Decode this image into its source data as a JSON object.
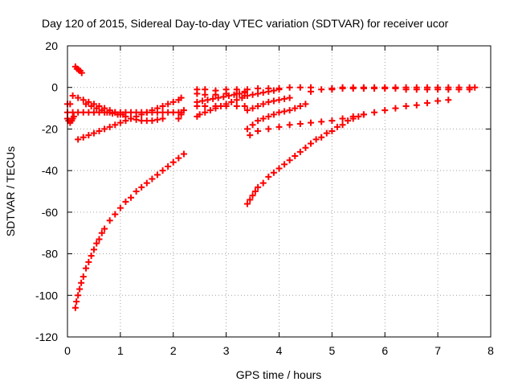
{
  "chart_data": {
    "type": "scatter",
    "title": "Day 120 of 2015, Sidereal Day-to-day VTEC variation (SDTVAR) for receiver ucor",
    "xlabel": "GPS time / hours",
    "ylabel": "SDTVAR / TECUs",
    "xlim": [
      0,
      8
    ],
    "ylim": [
      -120,
      20
    ],
    "xticks": [
      0,
      1,
      2,
      3,
      4,
      5,
      6,
      7,
      8
    ],
    "yticks": [
      -120,
      -100,
      -80,
      -60,
      -40,
      -20,
      0,
      20
    ],
    "grid": true,
    "marker": "plus",
    "color": "#ff0000",
    "series": [
      {
        "name": "arc-low-1",
        "x": [
          0.15,
          0.17,
          0.2,
          0.23,
          0.26,
          0.3,
          0.35,
          0.4,
          0.45,
          0.5,
          0.55,
          0.6,
          0.65,
          0.7,
          0.8,
          0.9,
          1.0,
          1.1,
          1.2,
          1.3,
          1.4,
          1.5,
          1.6,
          1.7,
          1.8,
          1.9,
          2.0,
          2.1,
          2.2
        ],
        "y": [
          -106,
          -103,
          -100,
          -97,
          -94,
          -91,
          -87,
          -84,
          -81,
          -78,
          -75,
          -73,
          -70,
          -68,
          -64,
          -61,
          -58,
          -55,
          -53,
          -50,
          -48,
          -46,
          -44,
          -42,
          -40,
          -38,
          -36,
          -34,
          -32
        ]
      },
      {
        "name": "arc-low-2",
        "x": [
          3.4,
          3.45,
          3.5,
          3.55,
          3.6,
          3.7,
          3.8,
          3.9,
          4.0,
          4.1,
          4.2,
          4.3,
          4.4,
          4.5,
          4.6,
          4.7,
          4.8,
          4.9,
          5.0,
          5.1,
          5.2,
          5.3,
          5.4,
          5.5,
          5.6
        ],
        "y": [
          -56,
          -54,
          -52,
          -50,
          -48,
          -46,
          -43,
          -41,
          -39,
          -37,
          -35,
          -33,
          -31,
          -29,
          -27,
          -25,
          -24,
          -22,
          -21,
          -19,
          -18,
          -16,
          -15,
          -14,
          -13
        ]
      },
      {
        "name": "rise-long",
        "x": [
          3.45,
          3.6,
          3.8,
          4.0,
          4.2,
          4.4,
          4.6,
          4.8,
          5.0,
          5.2,
          5.4,
          5.6,
          5.8,
          6.0,
          6.2,
          6.4,
          6.6,
          6.8,
          7.0,
          7.2
        ],
        "y": [
          -23,
          -21,
          -20,
          -19,
          -18,
          -17.5,
          -17,
          -16.5,
          -16,
          -15,
          -14,
          -13,
          -12,
          -11,
          -10,
          -9,
          -8.5,
          -7.5,
          -6.5,
          -6
        ]
      },
      {
        "name": "rise-early",
        "x": [
          0.2,
          0.3,
          0.4,
          0.5,
          0.6,
          0.7,
          0.8,
          0.9,
          1.0,
          1.1,
          1.2,
          1.3,
          1.4,
          1.5,
          1.6,
          1.7,
          1.8,
          1.9,
          2.0,
          2.1,
          2.15
        ],
        "y": [
          -25,
          -24,
          -23,
          -22,
          -21,
          -20,
          -19,
          -18,
          -17,
          -16,
          -15,
          -14,
          -13,
          -12,
          -11,
          -10,
          -9,
          -8,
          -7,
          -6,
          -5
        ]
      },
      {
        "name": "flat-early",
        "x": [
          0.0,
          0.1,
          0.2,
          0.3,
          0.4,
          0.5,
          0.6,
          0.7,
          0.8,
          0.9,
          1.0,
          1.1,
          1.2,
          1.3,
          1.4,
          1.5,
          1.6,
          1.7,
          1.8,
          1.9,
          2.0,
          2.1,
          2.15
        ],
        "y": [
          -12,
          -12,
          -12,
          -12,
          -12,
          -12,
          -12,
          -12,
          -12,
          -12,
          -12,
          -12,
          -12,
          -12,
          -12,
          -12,
          -12,
          -12,
          -12,
          -12,
          -12,
          -12,
          -12
        ]
      },
      {
        "name": "cross-early",
        "x": [
          0.1,
          0.2,
          0.3,
          0.4,
          0.5,
          0.6,
          0.7,
          0.8,
          0.9,
          1.0,
          1.1,
          1.2,
          1.3,
          1.4,
          1.5,
          1.6,
          1.7,
          1.8
        ],
        "y": [
          -4,
          -5,
          -6,
          -7,
          -8,
          -9,
          -10,
          -11,
          -12,
          -13,
          -14,
          -15,
          -15.5,
          -16,
          -16,
          -16,
          -15.5,
          -15
        ]
      },
      {
        "name": "desc-mid",
        "x": [
          0.35,
          0.45,
          0.55,
          0.65,
          0.75,
          0.85,
          0.95,
          1.05
        ],
        "y": [
          -8,
          -9,
          -10,
          -11,
          -12,
          -12.5,
          -13,
          -13
        ]
      },
      {
        "name": "spike-top",
        "x": [
          0.15,
          0.18,
          0.21,
          0.24,
          0.27
        ],
        "y": [
          10,
          9,
          8.5,
          8,
          7
        ]
      },
      {
        "name": "left-edge",
        "x": [
          0.0,
          0.02,
          0.05,
          0.08,
          0.1,
          0.12
        ],
        "y": [
          -15,
          -16,
          -17,
          -16,
          -15,
          -14
        ]
      },
      {
        "name": "left-stub",
        "x": [
          0.0,
          0.05
        ],
        "y": [
          -8,
          -8
        ]
      },
      {
        "name": "tick-2",
        "x": [
          2.1,
          2.15,
          2.2
        ],
        "y": [
          -15,
          -13,
          -11
        ]
      },
      {
        "name": "mid-desc",
        "x": [
          2.45,
          2.5,
          2.6,
          2.7,
          2.8,
          2.9,
          3.0,
          3.1,
          3.2,
          3.3,
          3.35
        ],
        "y": [
          -14,
          -13,
          -12,
          -11,
          -10,
          -9,
          -8,
          -7,
          -6,
          -5,
          -4
        ]
      },
      {
        "name": "mid-flat",
        "x": [
          2.45,
          2.6,
          2.8,
          3.0,
          3.2,
          3.35
        ],
        "y": [
          -9,
          -9,
          -9,
          -9,
          -9,
          -9
        ]
      },
      {
        "name": "mid-upper",
        "x": [
          2.45,
          2.6,
          2.8,
          3.0,
          3.2,
          3.35
        ],
        "y": [
          -3,
          -3.5,
          -3.5,
          -3,
          -3,
          -2.5
        ]
      },
      {
        "name": "mid-top",
        "x": [
          2.45,
          2.6,
          2.8,
          3.0,
          3.2,
          3.4,
          3.6,
          3.8,
          4.0,
          4.2,
          4.4,
          4.6
        ],
        "y": [
          -1,
          -1,
          -1.5,
          -1,
          -1,
          -1,
          -0.5,
          -0.5,
          -0.5,
          0,
          0,
          0
        ]
      },
      {
        "name": "mid-cross",
        "x": [
          2.45,
          2.55,
          2.65,
          2.75,
          2.85,
          2.95,
          3.05,
          3.15,
          3.25,
          3.35
        ],
        "y": [
          -7,
          -6.5,
          -6,
          -5.5,
          -5,
          -4.5,
          -4,
          -3.5,
          -3,
          -2
        ]
      },
      {
        "name": "x3-fan-1",
        "x": [
          3.4,
          3.5,
          3.6,
          3.7,
          3.8,
          3.9,
          4.0,
          4.1,
          4.2,
          4.3,
          4.4,
          4.5
        ],
        "y": [
          -20,
          -18,
          -16,
          -15,
          -14,
          -13,
          -12,
          -11.5,
          -11,
          -10,
          -9,
          -8
        ]
      },
      {
        "name": "x3-fan-2",
        "x": [
          3.4,
          3.5,
          3.6,
          3.7,
          3.8,
          3.9,
          4.0,
          4.1,
          4.2
        ],
        "y": [
          -11,
          -10,
          -9,
          -8,
          -7,
          -6.5,
          -6,
          -5.5,
          -5
        ]
      },
      {
        "name": "x3-fan-3",
        "x": [
          3.4,
          3.5,
          3.6,
          3.7,
          3.8,
          3.9,
          4.0
        ],
        "y": [
          -4,
          -3.5,
          -3,
          -2.5,
          -2,
          -1.5,
          -1
        ]
      },
      {
        "name": "late-flat",
        "x": [
          4.6,
          4.8,
          5.0,
          5.2,
          5.4,
          5.6,
          5.8,
          6.0,
          6.2,
          6.4,
          6.6,
          6.8,
          7.0,
          7.2,
          7.4,
          7.6,
          7.7
        ],
        "y": [
          -2,
          -1,
          -0.5,
          0,
          0,
          0,
          0,
          0,
          0,
          0,
          0,
          0,
          0,
          0,
          0,
          0,
          0
        ]
      },
      {
        "name": "late-flat-2",
        "x": [
          5.0,
          5.2,
          5.4,
          5.6,
          5.8,
          6.0,
          6.2,
          6.4,
          6.6,
          6.8,
          7.0,
          7.2,
          7.4,
          7.6
        ],
        "y": [
          -1,
          -0.5,
          -0.5,
          -0.5,
          -0.5,
          -0.5,
          -0.5,
          -1,
          -1,
          -1,
          -1,
          -1,
          -1,
          -1
        ]
      }
    ]
  }
}
